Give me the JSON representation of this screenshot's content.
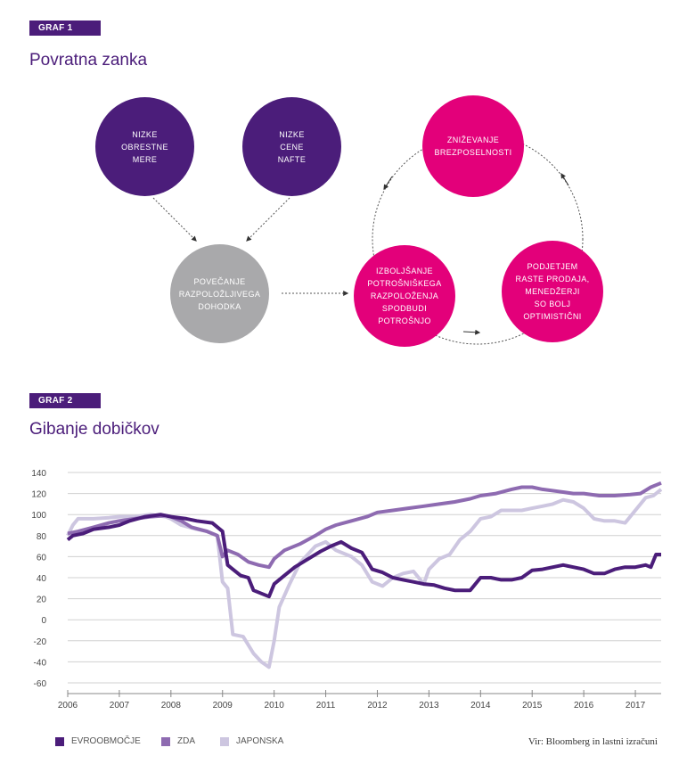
{
  "graf1": {
    "tag": "GRAF 1",
    "title": "Povratna zanka",
    "nodes": [
      {
        "id": "obrestne",
        "text": "NIZKE\nOBRESTNE\nMERE",
        "color": "#4b1d7a"
      },
      {
        "id": "nafta",
        "text": "NIZKE\nCENE\nNAFTE",
        "color": "#4b1d7a"
      },
      {
        "id": "dohodek",
        "text": "POVEČANJE\nRAZPOLOŽLJIVEGA\nDOHODKA",
        "color": "#a9a9ab"
      },
      {
        "id": "brezposelnost",
        "text": "ZNIŽEVANJE\nBREZPOSELNOSTI",
        "color": "#e3007a"
      },
      {
        "id": "razpolozenje",
        "text": "IZBOLJŠANJE\nPOTROŠNIŠKEGA\nRAZPOLOŽENJA\nSPODBUDI\nPOTROŠNJO",
        "color": "#e3007a"
      },
      {
        "id": "podjetja",
        "text": "PODJETJEM\nRASTE PRODAJA,\nMENEDŽERJI\nSO BOLJ\nOPTIMISTIČNI",
        "color": "#e3007a"
      }
    ]
  },
  "graf2": {
    "tag": "GRAF 2",
    "title": "Gibanje dobičkov",
    "source": "Vir: Bloomberg in lastni izračuni"
  },
  "chart_data": {
    "type": "line",
    "title": "Gibanje dobičkov",
    "xlabel": "",
    "ylabel": "",
    "xlim": [
      2006,
      2017.5
    ],
    "ylim": [
      -60,
      140
    ],
    "yticks": [
      140,
      120,
      100,
      80,
      60,
      40,
      20,
      0,
      -20,
      -40,
      -60
    ],
    "xticks": [
      "2006",
      "2007",
      "2008",
      "2009",
      "2010",
      "2011",
      "2012",
      "2013",
      "2014",
      "2015",
      "2016",
      "2017"
    ],
    "grid": true,
    "legend_position": "bottom",
    "series": [
      {
        "name": "EVROOBMOČJE",
        "color": "#4b1d7a",
        "points": [
          [
            2006.0,
            76
          ],
          [
            2006.1,
            80
          ],
          [
            2006.3,
            82
          ],
          [
            2006.5,
            86
          ],
          [
            2006.8,
            88
          ],
          [
            2007.0,
            90
          ],
          [
            2007.2,
            94
          ],
          [
            2007.5,
            98
          ],
          [
            2007.8,
            100
          ],
          [
            2008.0,
            98
          ],
          [
            2008.3,
            96
          ],
          [
            2008.5,
            94
          ],
          [
            2008.8,
            92
          ],
          [
            2009.0,
            84
          ],
          [
            2009.1,
            52
          ],
          [
            2009.2,
            48
          ],
          [
            2009.35,
            42
          ],
          [
            2009.5,
            40
          ],
          [
            2009.6,
            28
          ],
          [
            2009.75,
            25
          ],
          [
            2009.9,
            22
          ],
          [
            2010.0,
            34
          ],
          [
            2010.2,
            42
          ],
          [
            2010.4,
            50
          ],
          [
            2010.6,
            56
          ],
          [
            2010.9,
            65
          ],
          [
            2011.1,
            70
          ],
          [
            2011.3,
            74
          ],
          [
            2011.5,
            68
          ],
          [
            2011.7,
            64
          ],
          [
            2011.8,
            56
          ],
          [
            2011.9,
            48
          ],
          [
            2012.1,
            45
          ],
          [
            2012.3,
            40
          ],
          [
            2012.5,
            38
          ],
          [
            2012.7,
            36
          ],
          [
            2012.9,
            34
          ],
          [
            2013.1,
            33
          ],
          [
            2013.3,
            30
          ],
          [
            2013.5,
            28
          ],
          [
            2013.8,
            28
          ],
          [
            2014.0,
            40
          ],
          [
            2014.2,
            40
          ],
          [
            2014.4,
            38
          ],
          [
            2014.6,
            38
          ],
          [
            2014.8,
            40
          ],
          [
            2015.0,
            47
          ],
          [
            2015.2,
            48
          ],
          [
            2015.4,
            50
          ],
          [
            2015.6,
            52
          ],
          [
            2015.8,
            50
          ],
          [
            2016.0,
            48
          ],
          [
            2016.2,
            44
          ],
          [
            2016.4,
            44
          ],
          [
            2016.6,
            48
          ],
          [
            2016.8,
            50
          ],
          [
            2017.0,
            50
          ],
          [
            2017.2,
            52
          ],
          [
            2017.3,
            50
          ],
          [
            2017.4,
            62
          ],
          [
            2017.5,
            62
          ]
        ]
      },
      {
        "name": "ZDA",
        "color": "#8e6bb1",
        "points": [
          [
            2006.0,
            82
          ],
          [
            2006.2,
            84
          ],
          [
            2006.5,
            88
          ],
          [
            2006.8,
            92
          ],
          [
            2007.0,
            94
          ],
          [
            2007.3,
            96
          ],
          [
            2007.6,
            98
          ],
          [
            2007.9,
            99
          ],
          [
            2008.0,
            98
          ],
          [
            2008.2,
            94
          ],
          [
            2008.4,
            88
          ],
          [
            2008.7,
            84
          ],
          [
            2008.9,
            80
          ],
          [
            2009.0,
            60
          ],
          [
            2009.1,
            66
          ],
          [
            2009.3,
            62
          ],
          [
            2009.5,
            55
          ],
          [
            2009.7,
            52
          ],
          [
            2009.9,
            50
          ],
          [
            2010.0,
            58
          ],
          [
            2010.2,
            66
          ],
          [
            2010.5,
            72
          ],
          [
            2010.8,
            80
          ],
          [
            2011.0,
            86
          ],
          [
            2011.2,
            90
          ],
          [
            2011.5,
            94
          ],
          [
            2011.8,
            98
          ],
          [
            2012.0,
            102
          ],
          [
            2012.3,
            104
          ],
          [
            2012.6,
            106
          ],
          [
            2012.9,
            108
          ],
          [
            2013.2,
            110
          ],
          [
            2013.5,
            112
          ],
          [
            2013.8,
            115
          ],
          [
            2014.0,
            118
          ],
          [
            2014.3,
            120
          ],
          [
            2014.6,
            124
          ],
          [
            2014.8,
            126
          ],
          [
            2015.0,
            126
          ],
          [
            2015.2,
            124
          ],
          [
            2015.5,
            122
          ],
          [
            2015.8,
            120
          ],
          [
            2016.0,
            120
          ],
          [
            2016.3,
            118
          ],
          [
            2016.6,
            118
          ],
          [
            2016.9,
            119
          ],
          [
            2017.1,
            120
          ],
          [
            2017.3,
            126
          ],
          [
            2017.5,
            130
          ]
        ]
      },
      {
        "name": "JAPONSKA",
        "color": "#cdc6e0",
        "points": [
          [
            2006.0,
            80
          ],
          [
            2006.1,
            90
          ],
          [
            2006.2,
            96
          ],
          [
            2006.5,
            96
          ],
          [
            2006.8,
            97
          ],
          [
            2007.0,
            98
          ],
          [
            2007.3,
            98
          ],
          [
            2007.6,
            100
          ],
          [
            2007.9,
            98
          ],
          [
            2008.0,
            96
          ],
          [
            2008.2,
            90
          ],
          [
            2008.5,
            86
          ],
          [
            2008.7,
            84
          ],
          [
            2008.9,
            80
          ],
          [
            2009.0,
            36
          ],
          [
            2009.1,
            30
          ],
          [
            2009.2,
            -14
          ],
          [
            2009.4,
            -16
          ],
          [
            2009.6,
            -32
          ],
          [
            2009.75,
            -40
          ],
          [
            2009.9,
            -45
          ],
          [
            2010.0,
            -20
          ],
          [
            2010.1,
            12
          ],
          [
            2010.3,
            34
          ],
          [
            2010.5,
            54
          ],
          [
            2010.8,
            70
          ],
          [
            2011.0,
            74
          ],
          [
            2011.2,
            66
          ],
          [
            2011.5,
            60
          ],
          [
            2011.7,
            52
          ],
          [
            2011.9,
            36
          ],
          [
            2012.1,
            32
          ],
          [
            2012.3,
            40
          ],
          [
            2012.5,
            44
          ],
          [
            2012.7,
            46
          ],
          [
            2012.9,
            34
          ],
          [
            2013.0,
            48
          ],
          [
            2013.2,
            58
          ],
          [
            2013.4,
            62
          ],
          [
            2013.6,
            76
          ],
          [
            2013.8,
            84
          ],
          [
            2014.0,
            96
          ],
          [
            2014.2,
            98
          ],
          [
            2014.4,
            104
          ],
          [
            2014.6,
            104
          ],
          [
            2014.8,
            104
          ],
          [
            2015.0,
            106
          ],
          [
            2015.2,
            108
          ],
          [
            2015.4,
            110
          ],
          [
            2015.6,
            114
          ],
          [
            2015.8,
            112
          ],
          [
            2016.0,
            106
          ],
          [
            2016.2,
            96
          ],
          [
            2016.4,
            94
          ],
          [
            2016.6,
            94
          ],
          [
            2016.8,
            92
          ],
          [
            2017.0,
            104
          ],
          [
            2017.2,
            116
          ],
          [
            2017.35,
            118
          ],
          [
            2017.5,
            124
          ]
        ]
      }
    ]
  }
}
